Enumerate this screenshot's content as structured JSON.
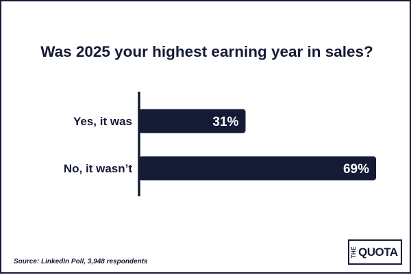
{
  "chart_data": {
    "type": "bar",
    "orientation": "horizontal",
    "title": "Was 2025 your highest earning year in sales?",
    "categories": [
      "Yes, it was",
      "No, it wasn’t"
    ],
    "values": [
      31,
      69
    ],
    "value_labels": [
      "31%",
      "69%"
    ],
    "xlim": [
      0,
      69
    ],
    "grid": false,
    "bar_color": "#151a35",
    "text_color": "#151a35",
    "label_color": "#ffffff"
  },
  "source": "Source: LinkedIn Poll, 3,948 respondents",
  "logo": {
    "prefix": "THE",
    "main": "QUOTA"
  }
}
